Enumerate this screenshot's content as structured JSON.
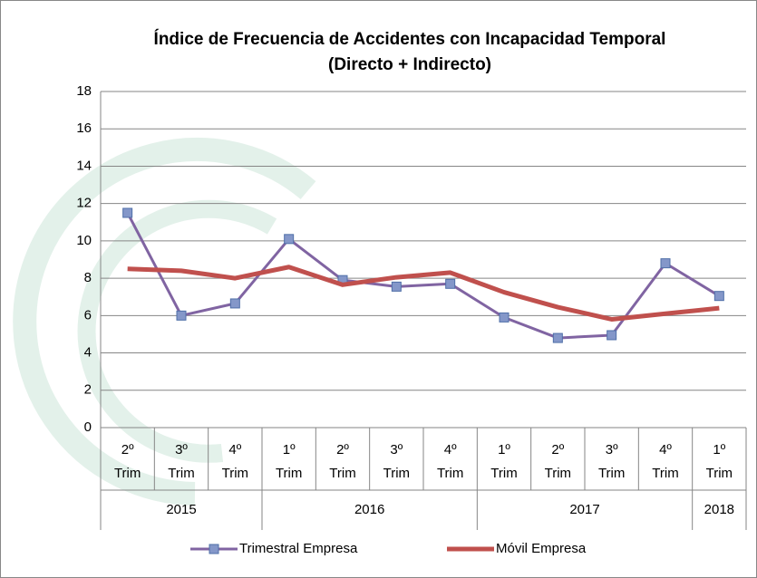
{
  "chart_data": {
    "type": "line",
    "title": "Índice de Frecuencia de Accidentes con Incapacidad Temporal",
    "subtitle": "(Directo + Indirecto)",
    "category_groups": [
      {
        "label": "2015",
        "categories": [
          [
            "2º",
            "Trim"
          ],
          [
            "3º",
            "Trim"
          ],
          [
            "4º",
            "Trim"
          ]
        ]
      },
      {
        "label": "2016",
        "categories": [
          [
            "1º",
            "Trim"
          ],
          [
            "2º",
            "Trim"
          ],
          [
            "3º",
            "Trim"
          ],
          [
            "4º",
            "Trim"
          ]
        ]
      },
      {
        "label": "2017",
        "categories": [
          [
            "1º",
            "Trim"
          ],
          [
            "2º",
            "Trim"
          ],
          [
            "3º",
            "Trim"
          ],
          [
            "4º",
            "Trim"
          ]
        ]
      },
      {
        "label": "2018",
        "categories": [
          [
            "1º",
            "Trim"
          ]
        ]
      }
    ],
    "series": [
      {
        "name": "Trimestral Empresa",
        "color": "#8064a2",
        "marker_color": "#8497c9",
        "marker": true,
        "values": [
          11.5,
          6.0,
          6.65,
          10.1,
          7.9,
          7.55,
          7.7,
          5.9,
          4.8,
          4.95,
          8.8,
          7.05
        ]
      },
      {
        "name": "Móvil Empresa",
        "color": "#c0504d",
        "marker": false,
        "values": [
          8.5,
          8.4,
          8.0,
          8.6,
          7.65,
          8.05,
          8.3,
          7.25,
          6.45,
          5.8,
          6.1,
          6.4
        ]
      }
    ],
    "ylim": [
      0,
      18
    ],
    "yticks": [
      0,
      2,
      4,
      6,
      8,
      10,
      12,
      14,
      16,
      18
    ],
    "grid": true,
    "legend": "bottom"
  }
}
